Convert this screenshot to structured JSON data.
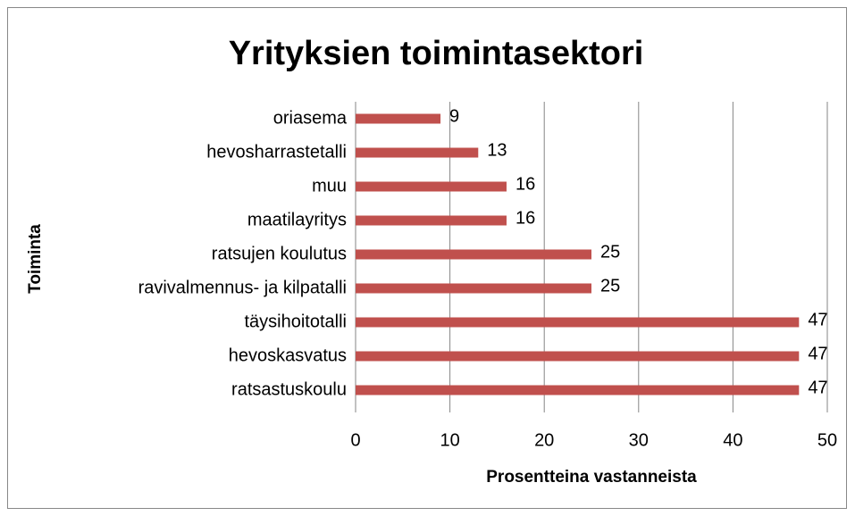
{
  "chart_data": {
    "type": "bar",
    "orientation": "horizontal",
    "title": "Yrityksien toimintasektori",
    "x_label": "Prosentteina vastanneista",
    "y_label": "Toiminta",
    "categories": [
      "oriasema",
      "hevosharrastetalli",
      "muu",
      "maatilayritys",
      "ratsujen koulutus",
      "ravivalmennus- ja kilpatalli",
      "täysihoitotalli",
      "hevoskasvatus",
      "ratsastuskoulu"
    ],
    "values": [
      9,
      13,
      16,
      16,
      25,
      25,
      47,
      47,
      47
    ],
    "color": "#c0504d",
    "xlim": [
      0,
      50
    ],
    "xticks": [
      0,
      10,
      20,
      30,
      40,
      50
    ],
    "grid": true
  }
}
